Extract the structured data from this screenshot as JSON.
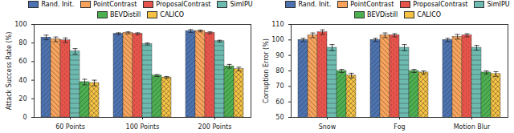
{
  "chart_data": [
    {
      "type": "bar",
      "y_label": "Attack Success Rate (%)",
      "categories": [
        "60 Points",
        "100 Points",
        "200 Points"
      ],
      "series": [
        {
          "name": "Rand. Init.",
          "color": "#4c72b0",
          "values": [
            86,
            90,
            93
          ],
          "errors": [
            2.5,
            1,
            1.5
          ]
        },
        {
          "name": "PointContrast",
          "color": "#f7a35c",
          "values": [
            84,
            91,
            93
          ],
          "errors": [
            2.5,
            1,
            1
          ]
        },
        {
          "name": "ProposalContrast",
          "color": "#e5534b",
          "values": [
            83,
            90,
            91
          ],
          "errors": [
            2.5,
            1,
            1
          ]
        },
        {
          "name": "SimIPU",
          "color": "#6dbbb0",
          "values": [
            71,
            79,
            82
          ],
          "errors": [
            3,
            1,
            1
          ]
        },
        {
          "name": "BEVDistill",
          "color": "#4caf50",
          "values": [
            38,
            45,
            55
          ],
          "errors": [
            3,
            1,
            2
          ]
        },
        {
          "name": "CALICO",
          "color": "#f5c242",
          "values": [
            37,
            43,
            52
          ],
          "errors": [
            3,
            1,
            2
          ]
        }
      ],
      "ylim": [
        0,
        100
      ],
      "yticks": [
        0,
        20,
        40,
        60,
        80,
        100
      ],
      "grid": false,
      "legend": "top"
    },
    {
      "type": "bar",
      "y_label": "Corruption Error (%)",
      "categories": [
        "Snow",
        "Fog",
        "Motion Blur"
      ],
      "series": [
        {
          "name": "Rand. Init.",
          "color": "#4c72b0",
          "values": [
            100,
            100,
            100
          ],
          "errors": [
            1,
            1,
            1
          ]
        },
        {
          "name": "PointContrast",
          "color": "#f7a35c",
          "values": [
            103,
            103,
            102
          ],
          "errors": [
            1.5,
            1.5,
            1.5
          ]
        },
        {
          "name": "ProposalContrast",
          "color": "#e5534b",
          "values": [
            105,
            103,
            103
          ],
          "errors": [
            1.5,
            1,
            1
          ]
        },
        {
          "name": "SimIPU",
          "color": "#6dbbb0",
          "values": [
            95,
            95,
            95
          ],
          "errors": [
            2,
            2,
            1.5
          ]
        },
        {
          "name": "BEVDistill",
          "color": "#4caf50",
          "values": [
            80,
            80,
            79
          ],
          "errors": [
            1,
            1,
            1
          ]
        },
        {
          "name": "CALICO",
          "color": "#f5c242",
          "values": [
            77,
            79,
            78
          ],
          "errors": [
            1.5,
            1,
            1.5
          ]
        }
      ],
      "ylim": [
        50,
        110
      ],
      "yticks": [
        50,
        60,
        70,
        80,
        90,
        100,
        110
      ],
      "grid": false,
      "legend": "top"
    }
  ]
}
